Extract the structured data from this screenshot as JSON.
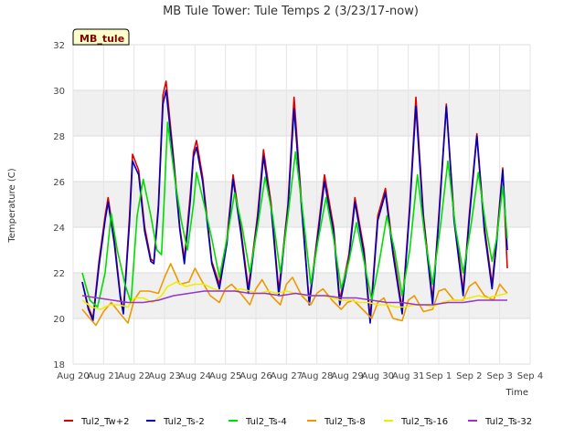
{
  "chart_data": {
    "type": "line",
    "title": "MB Tule Tower: Tule Temps 2 (3/23/17-now)",
    "xlabel": "Time",
    "ylabel": "Temperature (C)",
    "badge": "MB_tule",
    "xlim": [
      0,
      15
    ],
    "ylim": [
      18,
      32
    ],
    "yticks": [
      18,
      20,
      22,
      24,
      26,
      28,
      30,
      32
    ],
    "xtick_labels": [
      "Aug 20",
      "Aug 21",
      "Aug 22",
      "Aug 23",
      "Aug 24",
      "Aug 25",
      "Aug 26",
      "Aug 27",
      "Aug 28",
      "Aug 29",
      "Aug 30",
      "Aug 31",
      "Sep 1",
      "Sep 2",
      "Sep 3",
      "Sep 4"
    ],
    "legend_position": "bottom",
    "series": [
      {
        "name": "Tul2_Tw+2",
        "color": "#dd0000",
        "x": [
          0.3,
          0.5,
          0.65,
          0.85,
          1.05,
          1.15,
          1.35,
          1.55,
          1.65,
          1.85,
          1.95,
          2.15,
          2.35,
          2.55,
          2.65,
          2.8,
          2.95,
          3.05,
          3.3,
          3.5,
          3.65,
          3.85,
          3.95,
          4.05,
          4.25,
          4.55,
          4.8,
          5.05,
          5.25,
          5.5,
          5.75,
          6.05,
          6.25,
          6.5,
          6.75,
          7.05,
          7.25,
          7.5,
          7.75,
          8.05,
          8.25,
          8.55,
          8.75,
          9.05,
          9.25,
          9.55,
          9.75,
          10.0,
          10.25,
          10.5,
          10.8,
          11.05,
          11.25,
          11.5,
          11.8,
          12.0,
          12.25,
          12.5,
          12.8,
          13.0,
          13.25,
          13.5,
          13.75,
          13.9,
          14.1,
          14.25
        ],
        "y": [
          21.6,
          20.5,
          20.0,
          22.5,
          24.5,
          25.3,
          23.5,
          21.0,
          20.3,
          24.5,
          27.2,
          26.5,
          24.0,
          22.6,
          22.5,
          25.0,
          29.8,
          30.4,
          27.0,
          24.0,
          22.6,
          25.5,
          27.3,
          27.8,
          26.2,
          22.5,
          21.5,
          23.5,
          26.3,
          24.0,
          21.3,
          24.5,
          27.4,
          25.0,
          21.2,
          25.0,
          29.7,
          25.0,
          20.7,
          24.0,
          26.3,
          24.0,
          20.8,
          22.8,
          25.3,
          23.0,
          20.0,
          24.5,
          25.7,
          23.0,
          20.4,
          25.0,
          29.7,
          24.5,
          20.8,
          24.5,
          29.4,
          24.5,
          21.2,
          24.5,
          28.1,
          24.0,
          21.5,
          23.5,
          26.6,
          22.2
        ]
      },
      {
        "name": "Tul2_Ts-2",
        "color": "#0000bb",
        "x": [
          0.3,
          0.5,
          0.65,
          0.85,
          1.05,
          1.15,
          1.35,
          1.55,
          1.65,
          1.85,
          1.95,
          2.15,
          2.35,
          2.55,
          2.65,
          2.8,
          2.95,
          3.05,
          3.3,
          3.5,
          3.65,
          3.85,
          3.95,
          4.05,
          4.25,
          4.55,
          4.8,
          5.05,
          5.25,
          5.5,
          5.75,
          6.05,
          6.25,
          6.5,
          6.75,
          7.05,
          7.25,
          7.5,
          7.75,
          8.05,
          8.25,
          8.55,
          8.75,
          9.05,
          9.25,
          9.55,
          9.75,
          10.0,
          10.25,
          10.5,
          10.8,
          11.05,
          11.25,
          11.5,
          11.8,
          12.0,
          12.25,
          12.5,
          12.8,
          13.0,
          13.25,
          13.5,
          13.75,
          13.9,
          14.1,
          14.25
        ],
        "y": [
          21.6,
          20.4,
          19.9,
          22.3,
          24.3,
          25.1,
          23.3,
          20.9,
          20.2,
          24.2,
          26.9,
          26.3,
          23.8,
          22.5,
          22.4,
          24.8,
          29.4,
          30.0,
          26.8,
          23.9,
          22.4,
          25.2,
          27.1,
          27.5,
          26.0,
          22.4,
          21.3,
          23.3,
          26.1,
          23.8,
          21.1,
          24.3,
          27.1,
          24.8,
          21.0,
          24.8,
          29.2,
          24.8,
          20.6,
          23.8,
          26.0,
          23.8,
          20.6,
          22.6,
          25.1,
          22.8,
          19.8,
          24.3,
          25.5,
          22.8,
          20.2,
          24.8,
          29.3,
          24.3,
          20.6,
          24.3,
          29.3,
          24.3,
          21.0,
          24.3,
          28.0,
          23.8,
          21.3,
          23.3,
          26.5,
          23.0
        ]
      },
      {
        "name": "Tul2_Ts-4",
        "color": "#00dd00",
        "x": [
          0.3,
          0.55,
          0.8,
          1.05,
          1.25,
          1.45,
          1.7,
          1.9,
          2.1,
          2.3,
          2.55,
          2.75,
          2.9,
          3.0,
          3.1,
          3.35,
          3.55,
          3.75,
          3.95,
          4.05,
          4.3,
          4.55,
          4.8,
          5.05,
          5.3,
          5.55,
          5.8,
          6.05,
          6.3,
          6.55,
          6.8,
          7.05,
          7.3,
          7.55,
          7.8,
          8.05,
          8.3,
          8.55,
          8.8,
          9.05,
          9.3,
          9.55,
          9.8,
          10.05,
          10.3,
          10.55,
          10.8,
          11.05,
          11.3,
          11.55,
          11.8,
          12.05,
          12.3,
          12.55,
          12.8,
          13.05,
          13.3,
          13.55,
          13.75,
          13.9,
          14.1,
          14.25
        ],
        "y": [
          22.0,
          20.8,
          20.5,
          22.0,
          24.6,
          23.0,
          21.5,
          20.7,
          24.5,
          26.1,
          24.5,
          23.0,
          22.8,
          25.5,
          28.6,
          26.0,
          24.3,
          23.0,
          25.0,
          26.4,
          25.0,
          23.5,
          21.8,
          23.5,
          25.5,
          24.0,
          22.0,
          24.0,
          26.2,
          24.5,
          22.0,
          24.5,
          27.3,
          24.5,
          21.5,
          23.5,
          25.3,
          23.5,
          21.3,
          22.5,
          24.2,
          22.5,
          20.8,
          22.5,
          24.5,
          23.0,
          21.0,
          23.0,
          26.3,
          23.5,
          21.5,
          24.0,
          26.9,
          24.0,
          22.0,
          24.0,
          26.4,
          24.0,
          22.5,
          23.5,
          25.8,
          23.5
        ]
      },
      {
        "name": "Tul2_Ts-8",
        "color": "#ee9900",
        "x": [
          0.3,
          0.55,
          0.75,
          1.0,
          1.25,
          1.55,
          1.8,
          2.0,
          2.2,
          2.5,
          2.8,
          3.0,
          3.2,
          3.5,
          3.8,
          4.0,
          4.2,
          4.5,
          4.8,
          5.0,
          5.2,
          5.5,
          5.8,
          6.0,
          6.2,
          6.5,
          6.8,
          7.0,
          7.2,
          7.5,
          7.8,
          8.0,
          8.2,
          8.5,
          8.8,
          9.0,
          9.2,
          9.5,
          9.8,
          10.0,
          10.2,
          10.5,
          10.8,
          11.0,
          11.2,
          11.5,
          11.8,
          12.0,
          12.2,
          12.5,
          12.8,
          13.0,
          13.2,
          13.5,
          13.8,
          14.0,
          14.25
        ],
        "y": [
          20.4,
          20.0,
          19.7,
          20.3,
          20.7,
          20.2,
          19.8,
          20.8,
          21.2,
          21.2,
          21.1,
          21.8,
          22.4,
          21.5,
          21.6,
          22.2,
          21.7,
          21.0,
          20.7,
          21.3,
          21.5,
          21.1,
          20.6,
          21.3,
          21.7,
          21.0,
          20.6,
          21.5,
          21.8,
          21.0,
          20.6,
          21.1,
          21.3,
          20.8,
          20.4,
          20.7,
          20.8,
          20.4,
          20.0,
          20.7,
          20.9,
          20.0,
          19.9,
          20.8,
          21.0,
          20.3,
          20.4,
          21.2,
          21.3,
          20.8,
          20.8,
          21.4,
          21.6,
          21.0,
          20.8,
          21.5,
          21.1
        ]
      },
      {
        "name": "Tul2_Ts-16",
        "color": "#eeee00",
        "x": [
          0.3,
          0.6,
          0.9,
          1.2,
          1.5,
          1.8,
          2.0,
          2.3,
          2.6,
          2.9,
          3.1,
          3.4,
          3.7,
          4.0,
          4.3,
          4.6,
          4.9,
          5.2,
          5.5,
          5.8,
          6.1,
          6.4,
          6.7,
          7.0,
          7.3,
          7.6,
          7.9,
          8.2,
          8.5,
          8.8,
          9.1,
          9.4,
          9.7,
          10.0,
          10.3,
          10.6,
          10.9,
          11.2,
          11.5,
          11.8,
          12.1,
          12.4,
          12.7,
          13.0,
          13.3,
          13.6,
          13.9,
          14.25
        ],
        "y": [
          20.8,
          20.5,
          20.4,
          20.6,
          20.6,
          20.5,
          20.9,
          20.9,
          20.7,
          21.0,
          21.4,
          21.6,
          21.4,
          21.5,
          21.5,
          21.3,
          21.2,
          21.2,
          21.3,
          21.2,
          21.1,
          21.2,
          21.1,
          21.2,
          21.1,
          21.0,
          21.0,
          21.0,
          20.9,
          20.8,
          20.8,
          20.7,
          20.7,
          20.6,
          20.6,
          20.5,
          20.5,
          20.6,
          20.6,
          20.5,
          20.7,
          20.8,
          20.8,
          20.9,
          21.0,
          20.9,
          21.0,
          21.1
        ]
      },
      {
        "name": "Tul2_Ts-32",
        "color": "#9933cc",
        "x": [
          0.3,
          0.8,
          1.3,
          1.8,
          2.3,
          2.8,
          3.3,
          3.8,
          4.3,
          4.8,
          5.3,
          5.8,
          6.3,
          6.8,
          7.3,
          7.8,
          8.3,
          8.8,
          9.3,
          9.8,
          10.3,
          10.8,
          11.3,
          11.8,
          12.3,
          12.8,
          13.3,
          13.8,
          14.25
        ],
        "y": [
          21.0,
          20.9,
          20.8,
          20.7,
          20.7,
          20.8,
          21.0,
          21.1,
          21.2,
          21.2,
          21.2,
          21.1,
          21.1,
          21.0,
          21.1,
          21.0,
          21.0,
          20.9,
          20.9,
          20.8,
          20.7,
          20.7,
          20.6,
          20.6,
          20.7,
          20.7,
          20.8,
          20.8,
          20.8
        ]
      }
    ]
  }
}
